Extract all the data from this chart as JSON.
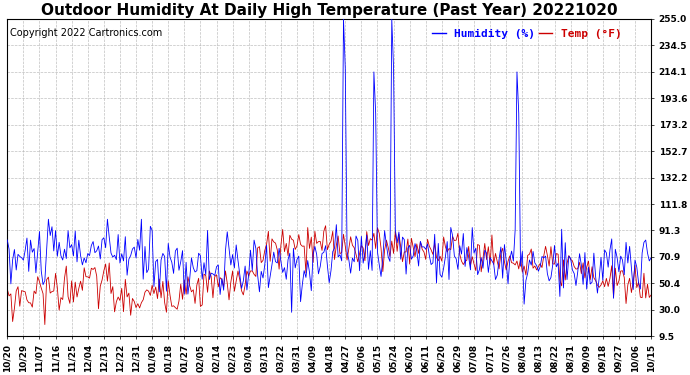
{
  "title": "Outdoor Humidity At Daily High Temperature (Past Year) 20221020",
  "copyright_text": "Copyright 2022 Cartronics.com",
  "legend_humidity": "Humidity (%)",
  "legend_temp": "Temp (°F)",
  "humidity_color": "#0000ff",
  "temp_color": "#cc0000",
  "background_color": "#ffffff",
  "grid_color": "#b0b0b0",
  "ylim": [
    9.5,
    255.0
  ],
  "yticks": [
    9.5,
    30.0,
    50.4,
    70.9,
    91.3,
    111.8,
    132.2,
    152.7,
    173.2,
    193.6,
    214.1,
    234.5,
    255.0
  ],
  "title_fontsize": 11,
  "copyright_fontsize": 7,
  "legend_fontsize": 8,
  "axis_label_fontsize": 6.5,
  "xtick_labels": [
    "10/20",
    "10/29",
    "11/07",
    "11/16",
    "11/25",
    "12/04",
    "12/13",
    "12/22",
    "12/31",
    "01/09",
    "01/18",
    "01/27",
    "02/05",
    "02/14",
    "02/23",
    "03/04",
    "03/13",
    "03/22",
    "03/31",
    "04/09",
    "04/18",
    "04/27",
    "05/06",
    "05/15",
    "05/24",
    "06/02",
    "06/11",
    "06/20",
    "06/29",
    "07/08",
    "07/17",
    "07/26",
    "08/04",
    "08/13",
    "08/22",
    "08/31",
    "09/09",
    "09/18",
    "09/27",
    "10/06",
    "10/15"
  ],
  "n_days": 361,
  "spike_days": [
    188,
    205,
    215,
    285
  ],
  "spike_values": [
    255,
    214,
    255,
    214
  ],
  "humidity_seed": 10,
  "temp_seed": 20
}
